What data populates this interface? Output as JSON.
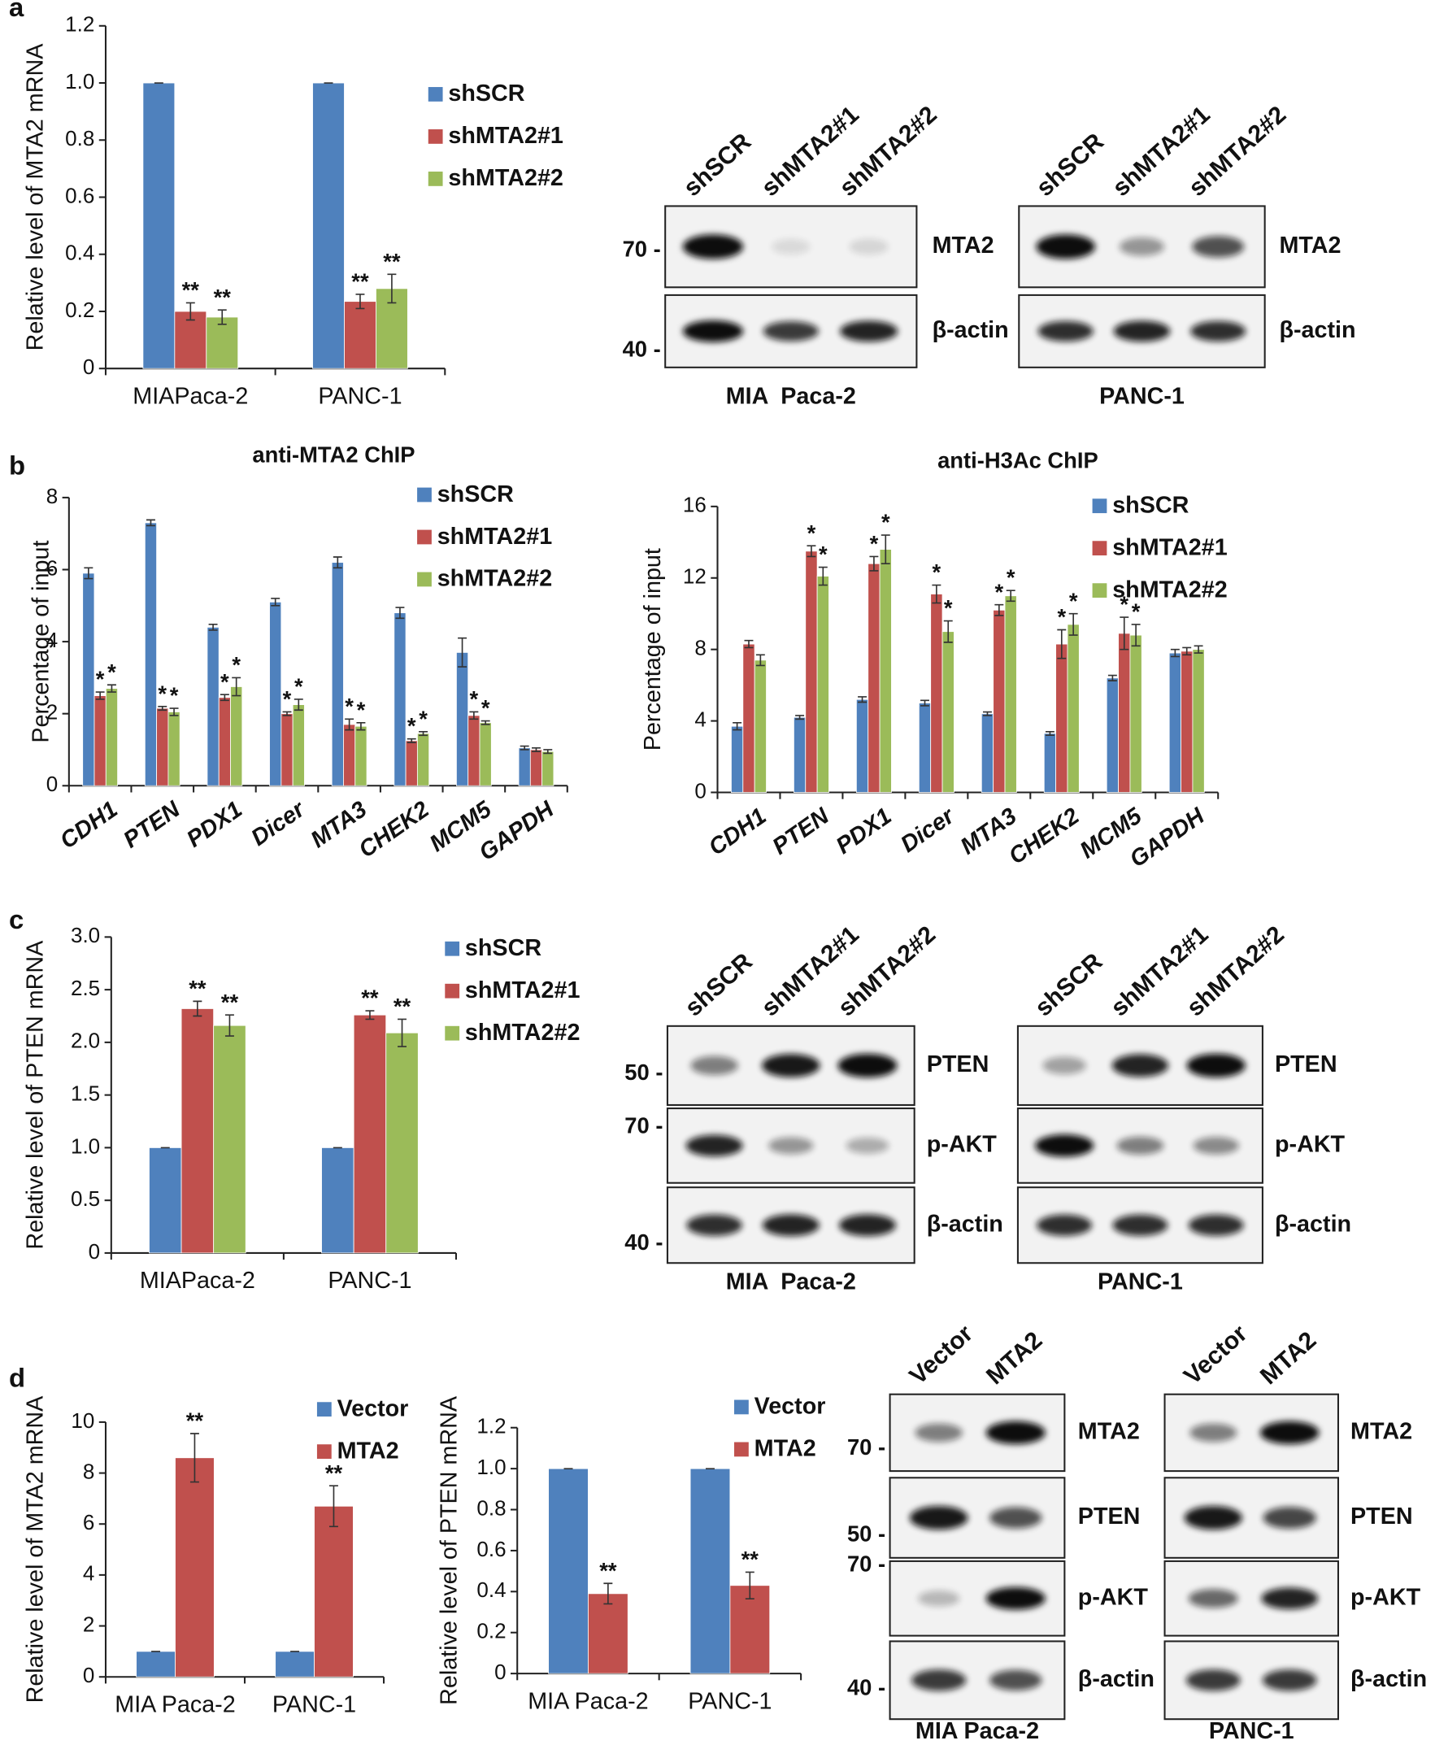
{
  "panel_labels": [
    "a",
    "b",
    "c",
    "d"
  ],
  "chart_data": [
    {
      "type": "bar",
      "y_label": "Relative level of MTA2 mRNA",
      "categories": [
        "MIAPaca-2",
        "PANC-1"
      ],
      "series": [
        {
          "name": "shSCR",
          "color": "#4f81bd",
          "values": [
            1,
            1
          ],
          "errors": [
            0,
            0
          ]
        },
        {
          "name": "shMTA2#1",
          "color": "#c0504d",
          "values": [
            0.2,
            0.235
          ],
          "errors": [
            0.03,
            0.025
          ],
          "significance": [
            "**",
            "**"
          ]
        },
        {
          "name": "shMTA2#2",
          "color": "#9bbb59",
          "values": [
            0.18,
            0.28
          ],
          "errors": [
            0.025,
            0.05
          ],
          "significance": [
            "**",
            "**"
          ]
        }
      ],
      "ylim": [
        0,
        1.2
      ],
      "yticks": [
        0,
        0.2,
        0.4,
        0.6,
        0.8,
        {
          "value": 1,
          "label": "1.0"
        },
        1.2
      ]
    },
    {
      "type": "bar",
      "title": "anti-MTA2 ChIP",
      "y_label": "Percentage of input",
      "categories": [
        "CDH1",
        "PTEN",
        "PDX1",
        "Dicer",
        "MTA3",
        "CHEK2",
        "MCM5",
        "GAPDH"
      ],
      "series": [
        {
          "name": "shSCR",
          "color": "#4f81bd",
          "values": [
            5.9,
            7.3,
            4.4,
            5.1,
            6.2,
            4.8,
            3.7,
            1.05
          ],
          "errors": [
            0.15,
            0.08,
            0.08,
            0.1,
            0.15,
            0.15,
            0.4,
            0.05
          ]
        },
        {
          "name": "shMTA2#1",
          "color": "#c0504d",
          "values": [
            2.5,
            2.15,
            2.45,
            2.0,
            1.7,
            1.25,
            1.95,
            1.0
          ],
          "errors": [
            0.1,
            0.05,
            0.08,
            0.05,
            0.15,
            0.05,
            0.1,
            0.05
          ],
          "significance": [
            "*",
            "*",
            "*",
            "*",
            "*",
            "*",
            "*",
            null
          ]
        },
        {
          "name": "shMTA2#2",
          "color": "#9bbb59",
          "values": [
            2.7,
            2.05,
            2.75,
            2.25,
            1.65,
            1.45,
            1.75,
            0.95
          ],
          "errors": [
            0.1,
            0.1,
            0.25,
            0.15,
            0.1,
            0.05,
            0.05,
            0.05
          ],
          "significance": [
            "*",
            "*",
            "*",
            "*",
            "*",
            "*",
            "*",
            null
          ]
        }
      ],
      "ylim": [
        0,
        8
      ],
      "yticks": [
        0,
        2,
        4,
        6,
        8
      ]
    },
    {
      "type": "bar",
      "title": "anti-H3Ac ChIP",
      "y_label": "Percentage of input",
      "categories": [
        "CDH1",
        "PTEN",
        "PDX1",
        "Dicer",
        "MTA3",
        "CHEK2",
        "MCM5",
        "GAPDH"
      ],
      "series": [
        {
          "name": "shSCR",
          "color": "#4f81bd",
          "values": [
            3.7,
            4.2,
            5.2,
            5.0,
            4.4,
            3.3,
            6.4,
            7.8
          ],
          "errors": [
            0.2,
            0.1,
            0.15,
            0.15,
            0.1,
            0.1,
            0.15,
            0.2
          ]
        },
        {
          "name": "shMTA2#1",
          "color": "#c0504d",
          "values": [
            8.3,
            13.5,
            12.8,
            11.1,
            10.2,
            8.3,
            8.9,
            7.9
          ],
          "errors": [
            0.2,
            0.3,
            0.4,
            0.5,
            0.3,
            0.8,
            0.9,
            0.2
          ],
          "significance": [
            null,
            "*",
            "*",
            "*",
            "*",
            "*",
            "*",
            null
          ]
        },
        {
          "name": "shMTA2#2",
          "color": "#9bbb59",
          "values": [
            7.4,
            12.1,
            13.6,
            9.0,
            11.0,
            9.4,
            8.8,
            8.0
          ],
          "errors": [
            0.3,
            0.5,
            0.8,
            0.6,
            0.3,
            0.6,
            0.6,
            0.2
          ],
          "significance": [
            null,
            "*",
            "*",
            "*",
            "*",
            "*",
            "*",
            null
          ]
        }
      ],
      "ylim": [
        0,
        16
      ],
      "yticks": [
        0,
        4,
        8,
        12,
        16
      ]
    },
    {
      "type": "bar",
      "y_label": "Relative level of PTEN mRNA",
      "categories": [
        "MIAPaca-2",
        "PANC-1"
      ],
      "series": [
        {
          "name": "shSCR",
          "color": "#4f81bd",
          "values": [
            1,
            1
          ],
          "errors": [
            0,
            0
          ]
        },
        {
          "name": "shMTA2#1",
          "color": "#c0504d",
          "values": [
            2.32,
            2.26
          ],
          "errors": [
            0.07,
            0.04
          ],
          "significance": [
            "**",
            "**"
          ]
        },
        {
          "name": "shMTA2#2",
          "color": "#9bbb59",
          "values": [
            2.16,
            2.09
          ],
          "errors": [
            0.1,
            0.13
          ],
          "significance": [
            "**",
            "**"
          ]
        }
      ],
      "ylim": [
        0,
        3
      ],
      "yticks": [
        0,
        0.5,
        {
          "value": 1,
          "label": "1.0"
        },
        1.5,
        {
          "value": 2,
          "label": "2.0"
        },
        2.5,
        {
          "value": 3,
          "label": "3.0"
        }
      ]
    },
    {
      "type": "bar",
      "y_label": "Relative level of MTA2 mRNA",
      "categories": [
        "MIA Paca-2",
        "PANC-1"
      ],
      "series": [
        {
          "name": "Vector",
          "color": "#4f81bd",
          "values": [
            1,
            1
          ],
          "errors": [
            0,
            0
          ]
        },
        {
          "name": "MTA2",
          "color": "#c0504d",
          "values": [
            8.6,
            6.7
          ],
          "errors": [
            0.95,
            0.8
          ],
          "significance": [
            "**",
            "**"
          ]
        }
      ],
      "ylim": [
        0,
        10
      ],
      "yticks": [
        0,
        2,
        4,
        6,
        8,
        10
      ]
    },
    {
      "type": "bar",
      "y_label": "Relative level of PTEN mRNA",
      "categories": [
        "MIA Paca-2",
        "PANC-1"
      ],
      "series": [
        {
          "name": "Vector",
          "color": "#4f81bd",
          "values": [
            1,
            1
          ],
          "errors": [
            0,
            0
          ]
        },
        {
          "name": "MTA2",
          "color": "#c0504d",
          "values": [
            0.39,
            0.43
          ],
          "errors": [
            0.05,
            0.065
          ],
          "significance": [
            "**",
            "**"
          ]
        }
      ],
      "ylim": [
        0,
        1.2
      ],
      "yticks": [
        0,
        0.2,
        0.4,
        0.6,
        0.8,
        {
          "value": 1,
          "label": "1.0"
        },
        1.2
      ]
    }
  ],
  "blots": [
    {
      "lanes": [
        "shSCR",
        "shMTA2#1",
        "shMTA2#2"
      ],
      "cell_line": "MIA  Paca-2",
      "rows": [
        "MTA2",
        "β-actin"
      ],
      "markers": [
        "70 -",
        "40 -"
      ]
    },
    {
      "lanes": [
        "shSCR",
        "shMTA2#1",
        "shMTA2#2"
      ],
      "cell_line": "PANC-1",
      "rows": [
        "MTA2",
        "β-actin"
      ]
    },
    {
      "lanes": [
        "shSCR",
        "shMTA2#1",
        "shMTA2#2"
      ],
      "cell_line": "MIA  Paca-2",
      "rows": [
        "PTEN",
        "p-AKT",
        "β-actin"
      ],
      "markers": [
        "50 -",
        "70 -",
        "40 -"
      ]
    },
    {
      "lanes": [
        "shSCR",
        "shMTA2#1",
        "shMTA2#2"
      ],
      "cell_line": "PANC-1",
      "rows": [
        "PTEN",
        "p-AKT",
        "β-actin"
      ]
    },
    {
      "lanes": [
        "Vector",
        "MTA2"
      ],
      "cell_line": "MIA Paca-2",
      "rows": [
        "MTA2",
        "PTEN",
        "p-AKT",
        "β-actin"
      ],
      "markers": [
        "70 -",
        "50 -",
        "70 -",
        "40 -"
      ]
    },
    {
      "lanes": [
        "Vector",
        "MTA2"
      ],
      "cell_line": "PANC-1",
      "rows": [
        "MTA2",
        "PTEN",
        "p-AKT",
        "β-actin"
      ]
    }
  ]
}
